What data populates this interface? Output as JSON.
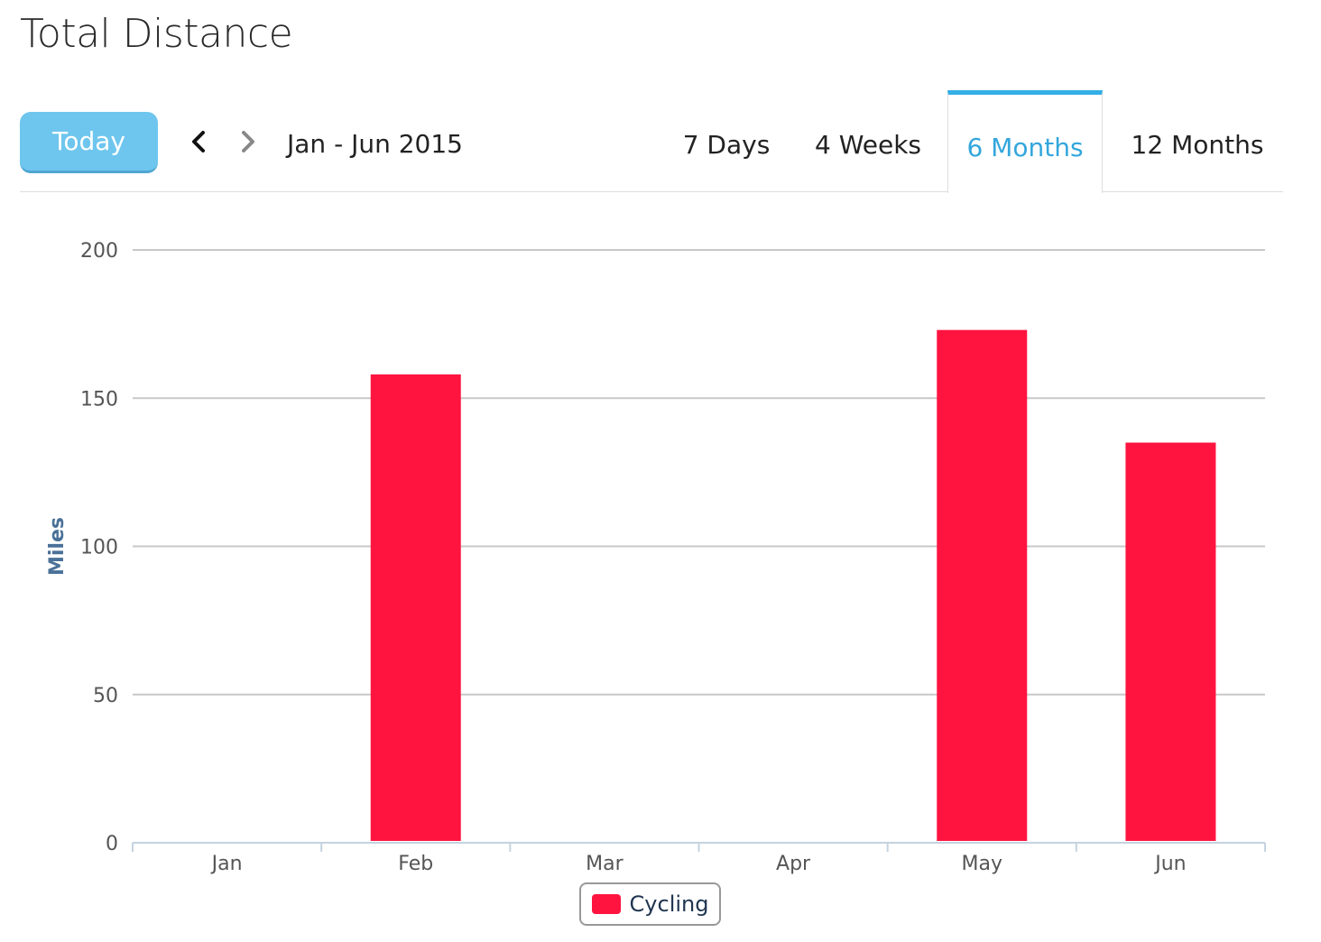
{
  "header": {
    "title": "Total Distance"
  },
  "toolbar": {
    "today_label": "Today",
    "prev_icon": "chevron-left-icon",
    "next_icon": "chevron-right-icon",
    "range_label": "Jan - Jun 2015",
    "tabs": [
      {
        "label": "7 Days",
        "active": false
      },
      {
        "label": "4 Weeks",
        "active": false
      },
      {
        "label": "6 Months",
        "active": true
      },
      {
        "label": "12 Months",
        "active": false
      }
    ]
  },
  "colors": {
    "accent": "#33a6dc",
    "today_button": "#6ec6ee",
    "bar": "#ff1440",
    "grid": "#c8c8c8",
    "axis_title": "#4a7198"
  },
  "chart_data": {
    "type": "bar",
    "title": "",
    "ylabel": "Miles",
    "xlabel": "",
    "ylim": [
      0,
      200
    ],
    "yticks": [
      0,
      50,
      100,
      150,
      200
    ],
    "categories": [
      "Jan",
      "Feb",
      "Mar",
      "Apr",
      "May",
      "Jun"
    ],
    "series": [
      {
        "name": "Cycling",
        "values": [
          0,
          158,
          0,
          0,
          173,
          135
        ]
      }
    ],
    "grid": true,
    "legend": "bottom-center"
  }
}
